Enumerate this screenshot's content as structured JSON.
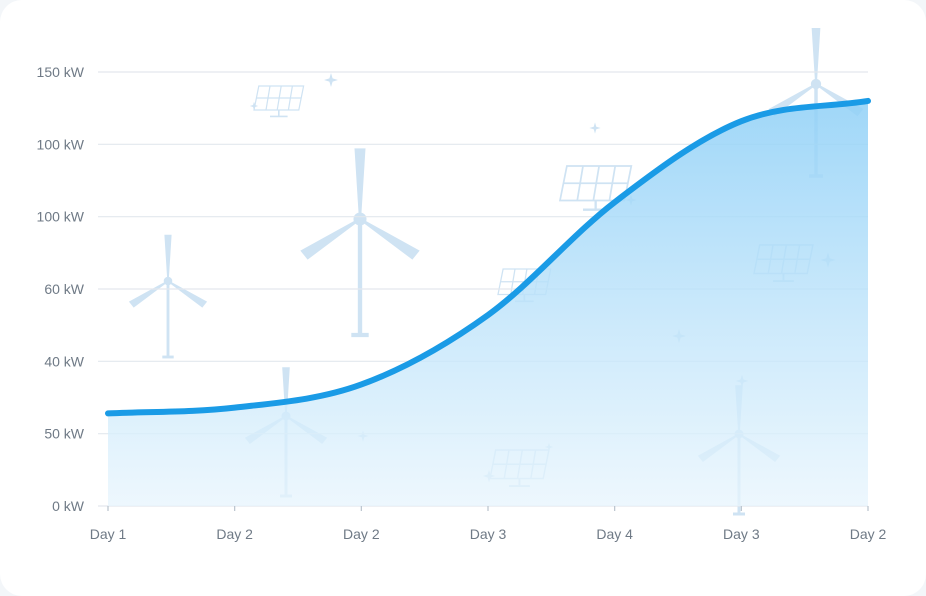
{
  "chart_data": {
    "type": "area",
    "title": "",
    "xlabel": "",
    "ylabel": "",
    "y_tick_labels": [
      "0 kW",
      "50 kW",
      "40 kW",
      "60 kW",
      "100 kW",
      "100 kW",
      "150 kW"
    ],
    "x_tick_labels": [
      "Day 1",
      "Day 2",
      "Day 2",
      "Day 3",
      "Day 4",
      "Day 3",
      "Day 2"
    ],
    "x": [
      0,
      1,
      2,
      3,
      4,
      5,
      6
    ],
    "series": [
      {
        "values": [
          32,
          34,
          42,
          66,
          105,
          133,
          140
        ]
      }
    ],
    "ylim": [
      0,
      150
    ],
    "grid": true,
    "legend": "none",
    "colors": {
      "line": "#1a9be6",
      "fill_top": "#8fd0f7",
      "fill_bottom": "#e8f5fd",
      "grid": "#e3e8ee",
      "text": "#6f7a86",
      "decor": "#cfe3f3"
    },
    "decorations": [
      "wind-turbine-icon",
      "solar-panel-icon",
      "sparkle-icon"
    ]
  }
}
